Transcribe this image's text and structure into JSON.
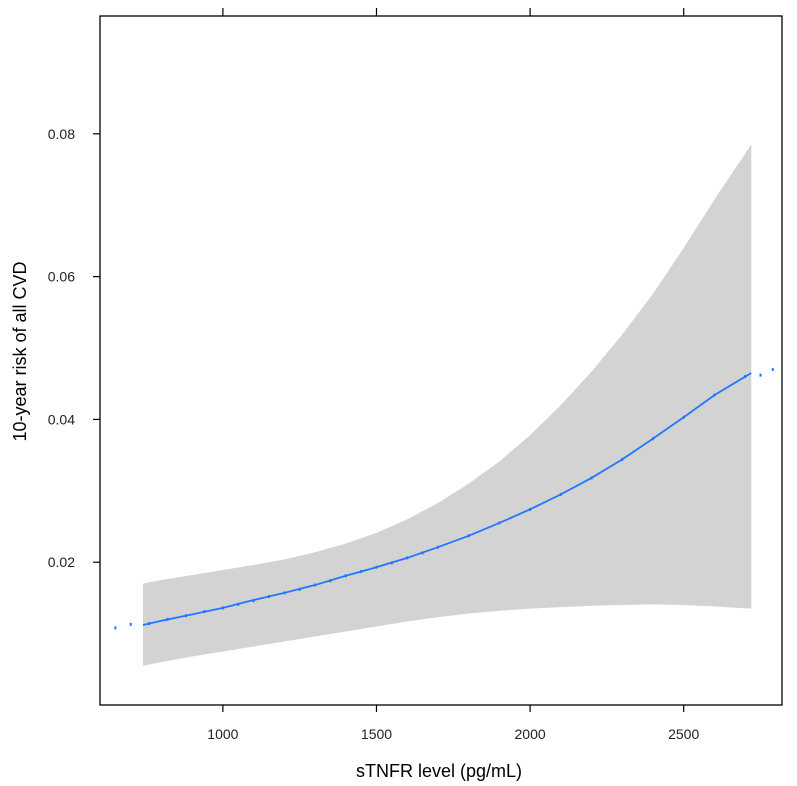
{
  "chart_data": {
    "type": "line",
    "title": "",
    "xlabel": "sTNFR level (pg/mL)",
    "ylabel": "10-year risk of all CVD",
    "xlim": [
      600,
      2820
    ],
    "ylim": [
      0.0,
      0.0965
    ],
    "x_ticks": [
      1000,
      1500,
      2000,
      2500
    ],
    "x_tick_labels": [
      "1000",
      "1500",
      "2000",
      "2500"
    ],
    "y_ticks": [
      0.02,
      0.04,
      0.06,
      0.08
    ],
    "y_tick_labels": [
      "0.02",
      "0.04",
      "0.06",
      "0.08"
    ],
    "grid": false,
    "colors": {
      "line": "#1f77ff",
      "ci_band": "#d3d3d3",
      "axis": "#000000"
    },
    "series": [
      {
        "kind": "fitted_line",
        "x": [
          740,
          800,
          900,
          1000,
          1100,
          1200,
          1300,
          1400,
          1500,
          1600,
          1700,
          1800,
          1900,
          2000,
          2100,
          2200,
          2300,
          2400,
          2500,
          2600,
          2720
        ],
        "y": [
          0.0112,
          0.0118,
          0.0127,
          0.0136,
          0.0147,
          0.0157,
          0.0168,
          0.0181,
          0.0193,
          0.0206,
          0.0221,
          0.0237,
          0.0255,
          0.0274,
          0.0295,
          0.0318,
          0.0344,
          0.0373,
          0.0403,
          0.0434,
          0.0465
        ]
      },
      {
        "kind": "ci_band",
        "x": [
          740,
          800,
          900,
          1000,
          1100,
          1200,
          1300,
          1400,
          1500,
          1600,
          1700,
          1800,
          1900,
          2000,
          2100,
          2200,
          2300,
          2400,
          2500,
          2600,
          2720
        ],
        "lower": [
          0.0055,
          0.006,
          0.0068,
          0.0075,
          0.0082,
          0.0089,
          0.0096,
          0.0103,
          0.011,
          0.0117,
          0.0123,
          0.0128,
          0.0132,
          0.0135,
          0.0137,
          0.0139,
          0.014,
          0.0141,
          0.014,
          0.0138,
          0.0135
        ],
        "upper": [
          0.017,
          0.0175,
          0.0182,
          0.0189,
          0.0196,
          0.0204,
          0.0214,
          0.0226,
          0.0241,
          0.026,
          0.0283,
          0.031,
          0.0341,
          0.0378,
          0.042,
          0.0467,
          0.0519,
          0.0576,
          0.064,
          0.0708,
          0.0785
        ]
      },
      {
        "kind": "scatter",
        "x": [
          650,
          700,
          760,
          820,
          880,
          940,
          1000,
          1050,
          1100,
          1150,
          1200,
          1250,
          1300,
          1350,
          1400,
          1450,
          1500,
          1550,
          1600,
          1650,
          1700,
          1800,
          1900,
          2000,
          2100,
          2200,
          2300,
          2400,
          2500,
          2600,
          2700,
          2750,
          2790
        ],
        "y": [
          0.0108,
          0.0113,
          0.0114,
          0.012,
          0.0125,
          0.0131,
          0.0136,
          0.0141,
          0.0146,
          0.0152,
          0.0157,
          0.0162,
          0.0168,
          0.0174,
          0.0181,
          0.0187,
          0.0193,
          0.0199,
          0.0206,
          0.0213,
          0.0221,
          0.0237,
          0.0255,
          0.0274,
          0.0295,
          0.0318,
          0.0344,
          0.0373,
          0.0403,
          0.0434,
          0.046,
          0.0462,
          0.047
        ]
      }
    ]
  }
}
